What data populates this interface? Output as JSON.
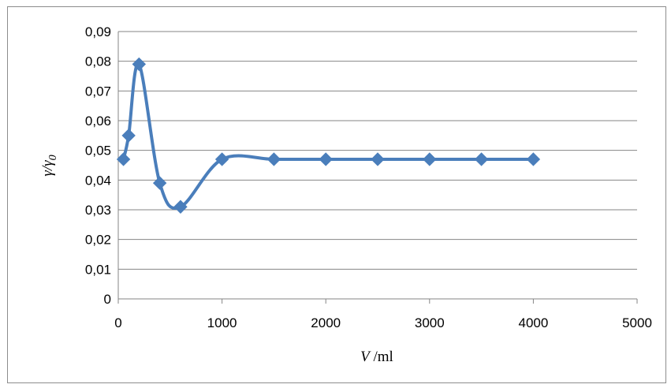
{
  "chart_data": {
    "type": "line",
    "smooth": true,
    "title": "",
    "xlabel": {
      "var": "V",
      "unit": " /ml"
    },
    "ylabel": {
      "num": "γ/γ",
      "sub": "0"
    },
    "xlim": [
      0,
      5000
    ],
    "ylim": [
      0,
      0.09
    ],
    "xticks": [
      0,
      1000,
      2000,
      3000,
      4000,
      5000
    ],
    "xtick_labels": [
      "0",
      "1000",
      "2000",
      "3000",
      "4000",
      "5000"
    ],
    "yticks": [
      0,
      0.01,
      0.02,
      0.03,
      0.04,
      0.05,
      0.06,
      0.07,
      0.08,
      0.09
    ],
    "ytick_labels": [
      "0",
      "0,01",
      "0,02",
      "0,03",
      "0,04",
      "0,05",
      "0,06",
      "0,07",
      "0,08",
      "0,09"
    ],
    "grid": "horizontal",
    "legend": "none",
    "series": [
      {
        "color": "#4a7ebb",
        "marker": "diamond",
        "x": [
          50,
          100,
          200,
          400,
          600,
          1000,
          1500,
          2000,
          2500,
          3000,
          3500,
          4000
        ],
        "y": [
          0.047,
          0.055,
          0.079,
          0.039,
          0.031,
          0.047,
          0.047,
          0.047,
          0.047,
          0.047,
          0.047,
          0.047
        ]
      }
    ]
  }
}
